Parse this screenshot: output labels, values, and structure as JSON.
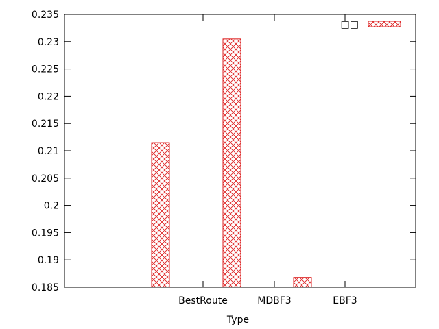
{
  "chart_data": {
    "type": "bar",
    "title": "",
    "xlabel": "Type",
    "ylabel": "",
    "ylim": [
      0.185,
      0.235
    ],
    "yticks": [
      "0.185",
      "0.19",
      "0.195",
      "0.2",
      "0.205",
      "0.21",
      "0.215",
      "0.22",
      "0.225",
      "0.23",
      "0.235"
    ],
    "categories": [
      "BestRoute",
      "MDBF3",
      "EBF3"
    ],
    "series": [
      {
        "name": "□□",
        "values": [
          0.2115,
          0.2305,
          0.1868
        ]
      }
    ],
    "grid": false,
    "legend_position": "top-right",
    "bar_color": "#dd2222",
    "bar_pattern": "crosshatch"
  }
}
